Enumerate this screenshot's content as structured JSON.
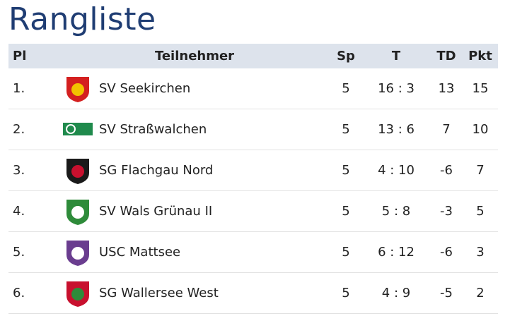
{
  "header": {
    "title": "Rangliste"
  },
  "table": {
    "columns": [
      "Pl",
      "Teilnehmer",
      "Sp",
      "T",
      "TD",
      "Pkt"
    ],
    "rows": [
      [
        "1.",
        "SV Seekirchen",
        5,
        "16 : 3",
        13,
        15
      ],
      [
        "2.",
        "SV Straßwalchen",
        5,
        "13 : 6",
        7,
        10
      ],
      [
        "3.",
        "SG Flachgau Nord",
        5,
        "4 : 10",
        -6,
        7
      ],
      [
        "4.",
        "SV Wals Grünau II",
        5,
        "5 : 8",
        -3,
        5
      ],
      [
        "5.",
        "USC Mattsee",
        5,
        "6 : 12",
        -6,
        3
      ],
      [
        "6.",
        "SG Wallersee West",
        5,
        "4 : 9",
        -5,
        2
      ]
    ]
  }
}
